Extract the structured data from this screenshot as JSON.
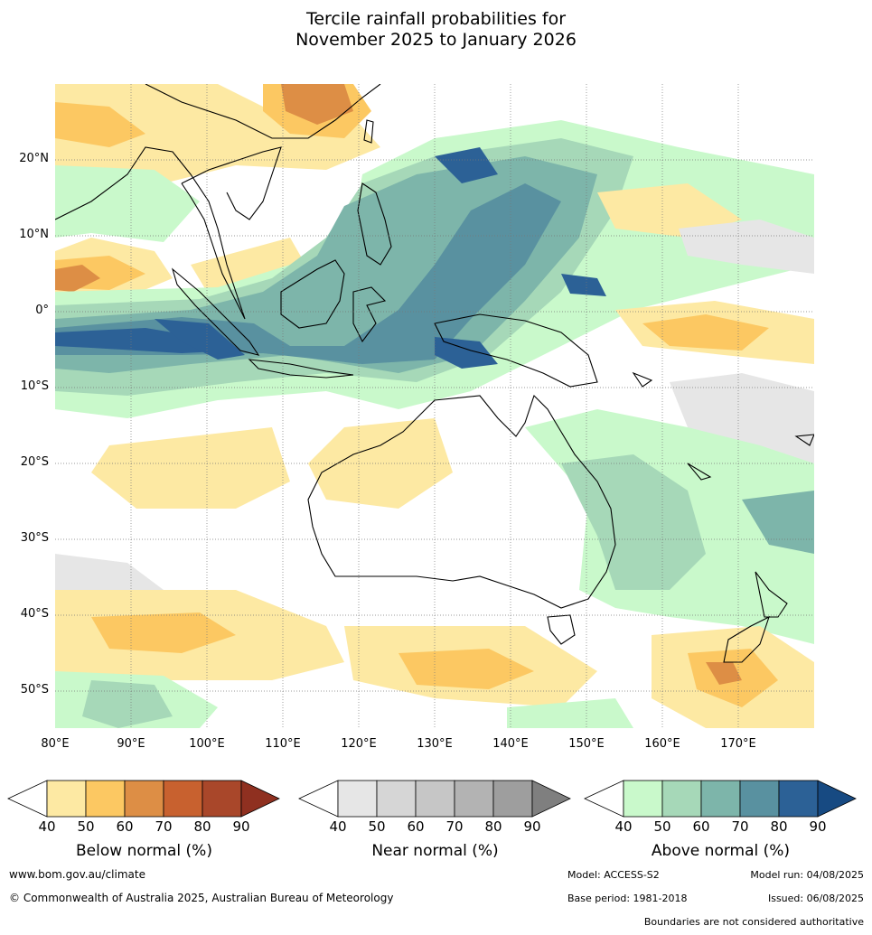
{
  "title": {
    "line1": "Tercile rainfall probabilities for",
    "line2": "November 2025 to January 2026"
  },
  "map": {
    "lat_labels": [
      "20°N",
      "10°N",
      "0°",
      "10°S",
      "20°S",
      "30°S",
      "40°S",
      "50°S"
    ],
    "lon_labels": [
      "80°E",
      "90°E",
      "100°E",
      "110°E",
      "120°E",
      "130°E",
      "140°E",
      "150°E",
      "160°E",
      "170°E"
    ],
    "lon_range": [
      80,
      180
    ],
    "lat_range": [
      -55,
      30
    ],
    "gridlines": "dotted"
  },
  "colorbars": [
    {
      "title": "Below normal (%)",
      "ticks": [
        "40",
        "50",
        "60",
        "70",
        "80",
        "90"
      ],
      "colors": [
        "#ffffff",
        "#fde9a3",
        "#fcc862",
        "#dd8e45",
        "#c8612f",
        "#a9472a",
        "#8f3020"
      ]
    },
    {
      "title": "Near normal (%)",
      "ticks": [
        "40",
        "50",
        "60",
        "70",
        "80",
        "90"
      ],
      "colors": [
        "#ffffff",
        "#e6e6e6",
        "#d6d6d6",
        "#c6c6c6",
        "#b3b3b3",
        "#9e9e9e",
        "#7f7f7f"
      ]
    },
    {
      "title": "Above normal (%)",
      "ticks": [
        "40",
        "50",
        "60",
        "70",
        "80",
        "90"
      ],
      "colors": [
        "#ffffff",
        "#c9f9cb",
        "#a6d8b8",
        "#7db5aa",
        "#5991a0",
        "#2c6196",
        "#174a82"
      ]
    }
  ],
  "footer": {
    "website": "www.bom.gov.au/climate",
    "copyright": "© Commonwealth of Australia 2025, Australian Bureau of Meteorology",
    "model": "Model: ACCESS-S2",
    "model_run": "Model run: 04/08/2025",
    "base_period": "Base period: 1981-2018",
    "issued": "Issued: 06/08/2025",
    "disclaimer": "Boundaries are not considered authoritative"
  }
}
